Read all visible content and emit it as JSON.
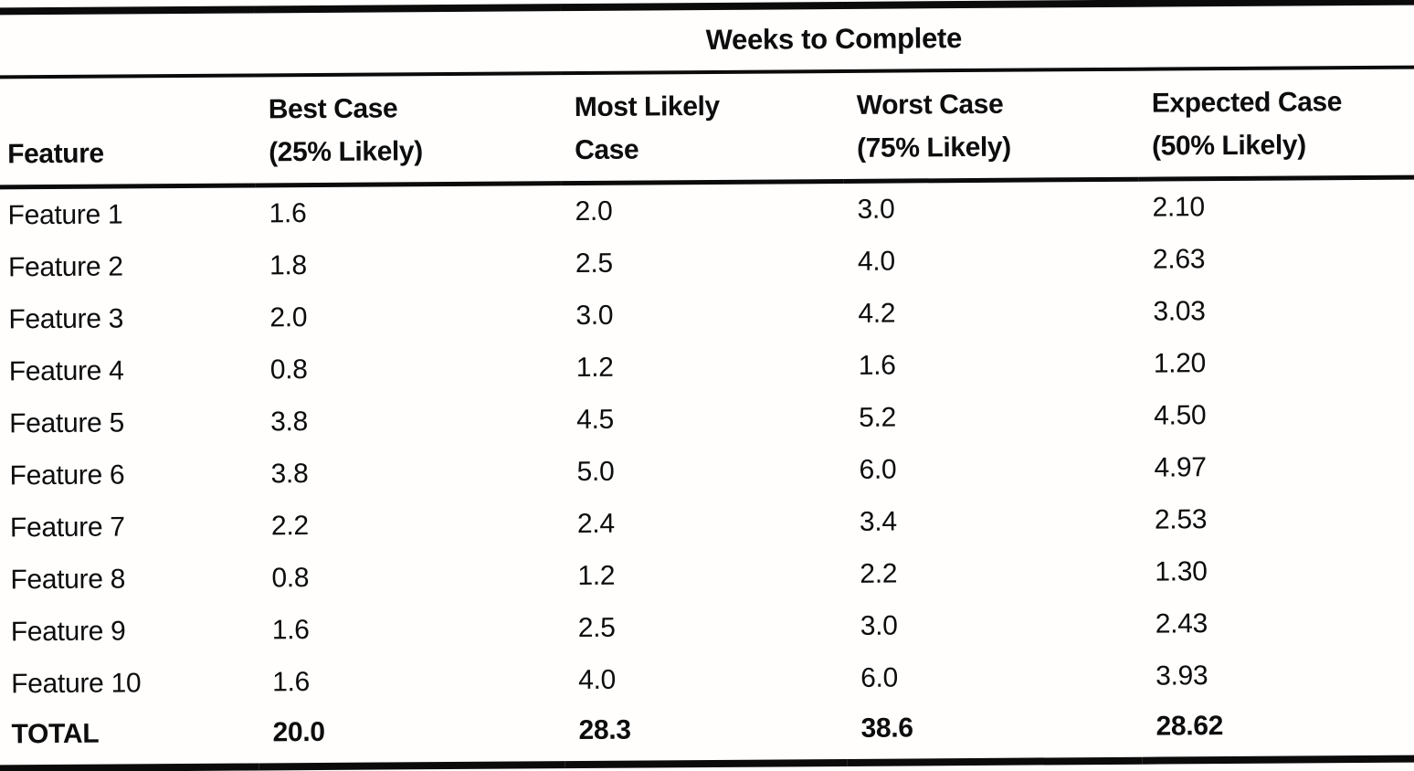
{
  "colors": {
    "paper": "#fffefd",
    "ink": "#0d0d0d",
    "rule": "#0b0b0b"
  },
  "table": {
    "spanner": "Weeks to Complete",
    "feature_header": "Feature",
    "value_headers": [
      {
        "line1": "Best Case",
        "line2": "(25% Likely)"
      },
      {
        "line1": "Most Likely",
        "line2": "Case"
      },
      {
        "line1": "Worst Case",
        "line2": "(75% Likely)"
      },
      {
        "line1": "Expected Case",
        "line2": "(50% Likely)"
      }
    ],
    "rows": [
      {
        "feature": "Feature 1",
        "best": "1.6",
        "most_likely": "2.0",
        "worst": "3.0",
        "expected": "2.10"
      },
      {
        "feature": "Feature 2",
        "best": "1.8",
        "most_likely": "2.5",
        "worst": "4.0",
        "expected": "2.63"
      },
      {
        "feature": "Feature 3",
        "best": "2.0",
        "most_likely": "3.0",
        "worst": "4.2",
        "expected": "3.03"
      },
      {
        "feature": "Feature 4",
        "best": "0.8",
        "most_likely": "1.2",
        "worst": "1.6",
        "expected": "1.20"
      },
      {
        "feature": "Feature 5",
        "best": "3.8",
        "most_likely": "4.5",
        "worst": "5.2",
        "expected": "4.50"
      },
      {
        "feature": "Feature 6",
        "best": "3.8",
        "most_likely": "5.0",
        "worst": "6.0",
        "expected": "4.97"
      },
      {
        "feature": "Feature 7",
        "best": "2.2",
        "most_likely": "2.4",
        "worst": "3.4",
        "expected": "2.53"
      },
      {
        "feature": "Feature 8",
        "best": "0.8",
        "most_likely": "1.2",
        "worst": "2.2",
        "expected": "1.30"
      },
      {
        "feature": "Feature 9",
        "best": "1.6",
        "most_likely": "2.5",
        "worst": "3.0",
        "expected": "2.43"
      },
      {
        "feature": "Feature 10",
        "best": "1.6",
        "most_likely": "4.0",
        "worst": "6.0",
        "expected": "3.93"
      }
    ],
    "total_row": {
      "feature": "TOTAL",
      "best": "20.0",
      "most_likely": "28.3",
      "worst": "38.6",
      "expected": "28.62"
    }
  }
}
